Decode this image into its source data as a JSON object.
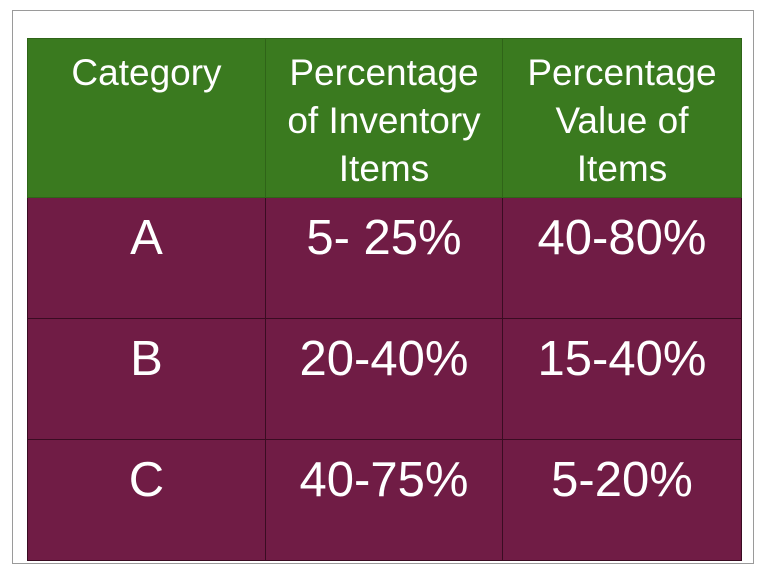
{
  "table": {
    "headers": [
      "Category",
      "Percentage of Inventory Items",
      "Percentage Value of Items"
    ],
    "rows": [
      [
        "A",
        "5- 25%",
        "40-80%"
      ],
      [
        "B",
        "20-40%",
        "15-40%"
      ],
      [
        "C",
        "40-75%",
        "5-20%"
      ]
    ]
  },
  "colors": {
    "header_background": "#3a7a1f",
    "body_background": "#701c45",
    "text": "#ffffff"
  }
}
